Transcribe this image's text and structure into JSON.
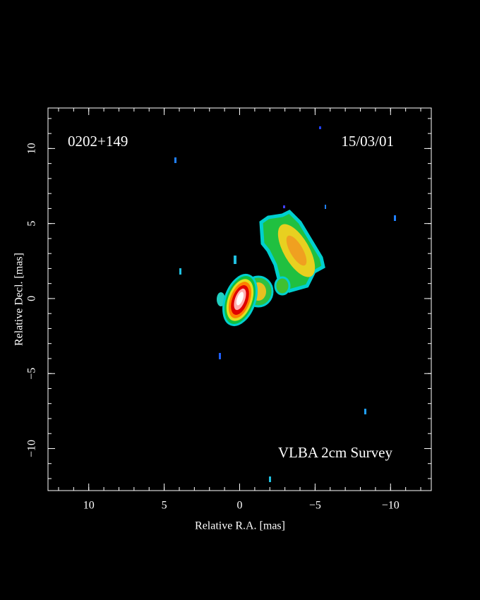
{
  "chart_data": {
    "type": "image",
    "annotations": [
      "0202+149",
      "15/03/01",
      "VLBA 2cm Survey"
    ],
    "x_label": "Relative R.A. [mas]",
    "y_label": "Relative Decl. [mas]",
    "xlim": [
      12.7,
      -12.7
    ],
    "ylim": [
      -12.8,
      12.7
    ],
    "xticks": [
      10,
      5,
      0,
      {
        "value": -5,
        "label": "−5"
      },
      {
        "value": -10,
        "label": "−10"
      }
    ],
    "yticks": [
      {
        "value": -10,
        "label": "−10"
      },
      {
        "value": -5,
        "label": "−5"
      },
      0,
      5,
      10
    ],
    "xminorticks": [
      12,
      11,
      10,
      9,
      8,
      7,
      6,
      5,
      4,
      3,
      2,
      1,
      0,
      -1,
      -2,
      -3,
      -4,
      -5,
      -6,
      -7,
      -8,
      -9,
      -10,
      -11,
      -12
    ],
    "yminorticks": [
      -12,
      -11,
      -10,
      -9,
      -8,
      -7,
      -6,
      -5,
      -4,
      -3,
      -2,
      -1,
      0,
      1,
      2,
      3,
      4,
      5,
      6,
      7,
      8,
      9,
      10,
      11,
      12
    ]
  }
}
